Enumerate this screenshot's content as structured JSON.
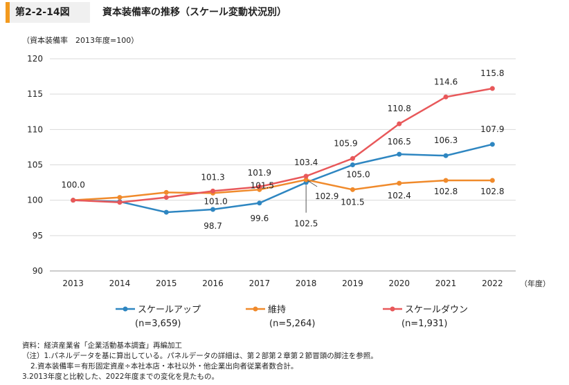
{
  "header": {
    "figure_label": "第2-2-14図",
    "title": "資本装備率の推移（スケール変動状況別）"
  },
  "unit_note": "（資本装備率　2013年度=100）",
  "chart_data": {
    "type": "line",
    "categories": [
      "2013",
      "2014",
      "2015",
      "2016",
      "2017",
      "2018",
      "2019",
      "2020",
      "2021",
      "2022"
    ],
    "x_unit_label": "（年度）",
    "yticks": [
      "120",
      "115",
      "110",
      "105",
      "100",
      "95",
      "90"
    ],
    "ylim": [
      90,
      120
    ],
    "grid": "horizontal",
    "legend_position": "bottom",
    "series": [
      {
        "name": "スケールアップ",
        "n_label": "(n=3,659)",
        "color": "#2e86c1",
        "values": [
          100.0,
          99.8,
          98.3,
          98.7,
          99.6,
          102.5,
          105.0,
          106.5,
          106.3,
          107.9
        ]
      },
      {
        "name": "維持",
        "n_label": "(n=5,264)",
        "color": "#f08a2b",
        "values": [
          100.0,
          100.4,
          101.1,
          101.0,
          101.5,
          102.9,
          101.5,
          102.4,
          102.8,
          102.8
        ]
      },
      {
        "name": "スケールダウン",
        "n_label": "(n=1,931)",
        "color": "#e8585a",
        "values": [
          100.0,
          99.7,
          100.4,
          101.3,
          101.9,
          103.4,
          105.9,
          110.8,
          114.6,
          115.8
        ]
      }
    ],
    "data_labels": [
      {
        "text": "100.0",
        "series": 0,
        "index": 0
      },
      {
        "text": "98.7",
        "series": 0,
        "index": 3
      },
      {
        "text": "99.6",
        "series": 0,
        "index": 4
      },
      {
        "text": "102.5",
        "series": 0,
        "index": 5
      },
      {
        "text": "105.0",
        "series": 0,
        "index": 6
      },
      {
        "text": "106.5",
        "series": 0,
        "index": 7
      },
      {
        "text": "106.3",
        "series": 0,
        "index": 8
      },
      {
        "text": "107.9",
        "series": 0,
        "index": 9
      },
      {
        "text": "101.0",
        "series": 1,
        "index": 3
      },
      {
        "text": "101.5",
        "series": 1,
        "index": 4
      },
      {
        "text": "102.9",
        "series": 1,
        "index": 5
      },
      {
        "text": "101.5",
        "series": 1,
        "index": 6
      },
      {
        "text": "102.4",
        "series": 1,
        "index": 7
      },
      {
        "text": "102.8",
        "series": 1,
        "index": 8
      },
      {
        "text": "102.8",
        "series": 1,
        "index": 9
      },
      {
        "text": "101.3",
        "series": 2,
        "index": 3
      },
      {
        "text": "101.9",
        "series": 2,
        "index": 4
      },
      {
        "text": "103.4",
        "series": 2,
        "index": 5
      },
      {
        "text": "105.9",
        "series": 2,
        "index": 6
      },
      {
        "text": "110.8",
        "series": 2,
        "index": 7
      },
      {
        "text": "114.6",
        "series": 2,
        "index": 8
      },
      {
        "text": "115.8",
        "series": 2,
        "index": 9
      }
    ]
  },
  "notes": [
    "資料：経済産業省「企業活動基本調査」再編加工",
    "（注）1.パネルデータを基に算出している。パネルデータの詳細は、第２部第２章第２節冒頭の脚注を参照。",
    "2.資本装備率＝有形固定資産÷本社本店・本社以外・他企業出向者従業者数合計。",
    "3.2013年度と比較した、2022年度までの変化を見たもの。"
  ]
}
